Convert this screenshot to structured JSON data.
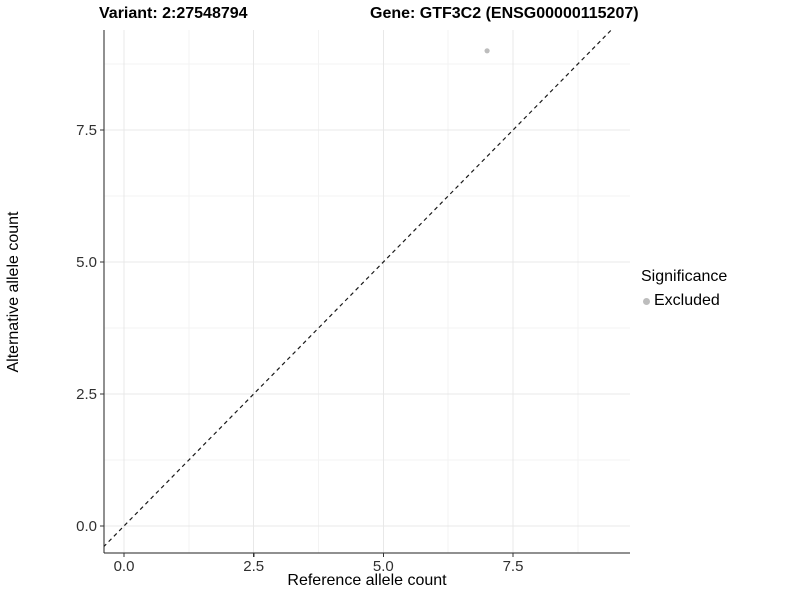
{
  "chart_data": {
    "type": "scatter",
    "title_left": "Variant: 2:27548794",
    "title_right": "Gene: GTF3C2 (ENSG00000115207)",
    "xlabel": "Reference allele count",
    "ylabel": "Alternative allele count",
    "x_ticks": [
      "0.0",
      "2.5",
      "5.0",
      "7.5"
    ],
    "y_ticks": [
      "0.0",
      "2.5",
      "5.0",
      "7.5"
    ],
    "xlim": [
      -0.4,
      9.8
    ],
    "ylim": [
      -0.5,
      9.4
    ],
    "grid": true,
    "points": [
      {
        "x": 7,
        "y": 9,
        "series": "Excluded"
      }
    ],
    "reference_line": {
      "type": "identity",
      "slope": 1,
      "intercept": 0,
      "style": "dashed",
      "color": "#1a1a1a"
    },
    "legend": {
      "title": "Significance",
      "position": "right",
      "entries": [
        {
          "label": "Excluded",
          "color": "#bdbdbd"
        }
      ]
    }
  }
}
